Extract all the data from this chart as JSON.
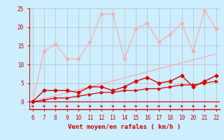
{
  "x": [
    6,
    7,
    8,
    9,
    10,
    11,
    12,
    13,
    14,
    15,
    16,
    17,
    18,
    19,
    20,
    21,
    22
  ],
  "line_max": [
    0,
    13.5,
    15.5,
    11.5,
    11.5,
    16,
    23.5,
    23.5,
    11.5,
    19.5,
    21,
    16,
    18,
    21,
    13.5,
    24.5,
    19.5
  ],
  "line_avg": [
    0,
    3,
    3,
    3,
    2.5,
    4,
    4,
    3,
    4,
    5.5,
    6.5,
    5,
    5.5,
    7,
    4,
    5.5,
    7
  ],
  "line_med": [
    0,
    0.5,
    1,
    1,
    1.5,
    2,
    2.5,
    2.5,
    3,
    3,
    3.5,
    3.5,
    4,
    4.5,
    4.5,
    5,
    5.5
  ],
  "trend": [
    0,
    0.8,
    1.6,
    2.4,
    3.2,
    4.0,
    4.8,
    5.6,
    6.4,
    7.2,
    8.0,
    8.8,
    9.6,
    10.4,
    11.2,
    12.0,
    12.8
  ],
  "color_max": "#ffaaaa",
  "color_avg": "#dd0000",
  "color_med": "#dd0000",
  "color_trend": "#ffaaaa",
  "bg_color": "#cceeff",
  "grid_color": "#bbbbbb",
  "xlabel": "Vent moyen/en rafales ( km/h )",
  "ylim": [
    0,
    25
  ],
  "xlim": [
    6,
    22
  ],
  "yticks": [
    0,
    5,
    10,
    15,
    20,
    25
  ],
  "xticks": [
    6,
    7,
    8,
    9,
    10,
    11,
    12,
    13,
    14,
    15,
    16,
    17,
    18,
    19,
    20,
    21,
    22
  ],
  "tick_color": "#cc0000",
  "label_color": "#cc0000",
  "spine_color": "#cc0000"
}
